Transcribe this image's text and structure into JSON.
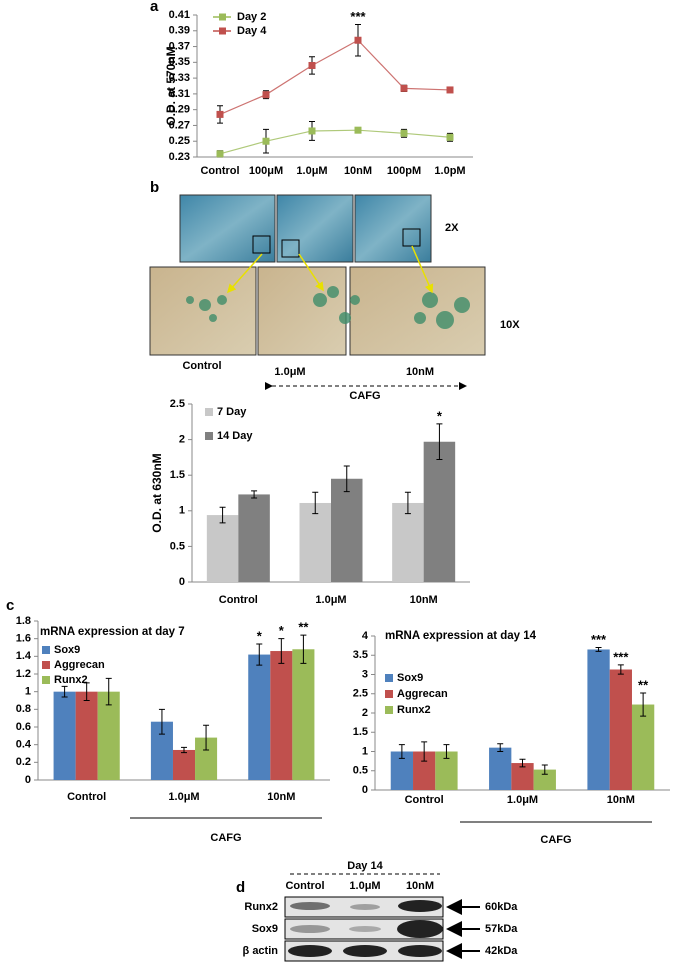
{
  "chart_data": [
    {
      "type": "line",
      "label": "a",
      "ylabel": "O.D. at 570nM",
      "categories": [
        "Control",
        "100μM",
        "1.0μM",
        "10nM",
        "100pM",
        "1.0pM"
      ],
      "series": [
        {
          "name": "Day 2",
          "color": "#9bbb59",
          "values": [
            0.234,
            0.25,
            0.263,
            0.264,
            0.26,
            0.255
          ],
          "errors": [
            0.004,
            0.015,
            0.012,
            0.003,
            0.005,
            0.005
          ]
        },
        {
          "name": "Day 4",
          "color": "#c0504d",
          "values": [
            0.284,
            0.309,
            0.346,
            0.378,
            0.317,
            0.315
          ],
          "errors": [
            0.011,
            0.005,
            0.011,
            0.02,
            0.004,
            0.003
          ],
          "annotations": [
            null,
            null,
            null,
            "***",
            null,
            null
          ]
        }
      ],
      "ylim": [
        0.23,
        0.41
      ],
      "yticks": [
        0.23,
        0.25,
        0.27,
        0.29,
        0.31,
        0.33,
        0.35,
        0.37,
        0.39,
        0.41
      ],
      "grid": false,
      "legend": "upper left"
    },
    {
      "type": "bar",
      "ylabel": "O.D. at 630nM",
      "categories": [
        "Control",
        "1.0μM",
        "10nM"
      ],
      "series": [
        {
          "name": "7 Day",
          "color": "#c8c8c8",
          "values": [
            0.94,
            1.11,
            1.11
          ],
          "errors": [
            0.11,
            0.15,
            0.15
          ]
        },
        {
          "name": "14 Day",
          "color": "#808080",
          "values": [
            1.23,
            1.45,
            1.97
          ],
          "errors": [
            0.05,
            0.18,
            0.25
          ],
          "annotations": [
            null,
            null,
            "*"
          ]
        }
      ],
      "ylim": [
        0,
        2.5
      ],
      "yticks": [
        0,
        0.5,
        1,
        1.5,
        2,
        2.5
      ],
      "grid": false,
      "legend": "upper left"
    },
    {
      "type": "bar",
      "label": "c",
      "title": "mRNA expression at day 7",
      "group_label": "CAFG",
      "categories": [
        "Control",
        "1.0μM",
        "10nM"
      ],
      "series": [
        {
          "name": "Sox9",
          "color": "#4f81bd",
          "values": [
            1.0,
            0.66,
            1.42
          ],
          "errors": [
            0.06,
            0.14,
            0.12
          ],
          "annotations": [
            null,
            null,
            "*"
          ]
        },
        {
          "name": "Aggrecan",
          "color": "#c0504d",
          "values": [
            1.0,
            0.34,
            1.46
          ],
          "errors": [
            0.1,
            0.03,
            0.14
          ],
          "annotations": [
            null,
            null,
            "*"
          ]
        },
        {
          "name": "Runx2",
          "color": "#9bbb59",
          "values": [
            1.0,
            0.48,
            1.48
          ],
          "errors": [
            0.15,
            0.14,
            0.16
          ],
          "annotations": [
            null,
            null,
            "**"
          ]
        }
      ],
      "ylim": [
        0,
        1.8
      ],
      "yticks": [
        0,
        0.2,
        0.4,
        0.6,
        0.8,
        1,
        1.2,
        1.4,
        1.6,
        1.8
      ],
      "grid": false,
      "legend": "upper left"
    },
    {
      "type": "bar",
      "title": "mRNA expression at day 14",
      "group_label": "CAFG",
      "categories": [
        "Control",
        "1.0μM",
        "10nM"
      ],
      "series": [
        {
          "name": "Sox9",
          "color": "#4f81bd",
          "values": [
            1.0,
            1.1,
            3.65
          ],
          "errors": [
            0.18,
            0.1,
            0.05
          ],
          "annotations": [
            null,
            null,
            "***"
          ]
        },
        {
          "name": "Aggrecan",
          "color": "#c0504d",
          "values": [
            1.0,
            0.7,
            3.13
          ],
          "errors": [
            0.25,
            0.1,
            0.12
          ],
          "annotations": [
            null,
            null,
            "***"
          ]
        },
        {
          "name": "Runx2",
          "color": "#9bbb59",
          "values": [
            1.0,
            0.53,
            2.22
          ],
          "errors": [
            0.18,
            0.12,
            0.3
          ],
          "annotations": [
            null,
            null,
            "**"
          ]
        }
      ],
      "ylim": [
        0,
        4
      ],
      "yticks": [
        0,
        0.5,
        1,
        1.5,
        2,
        2.5,
        3,
        3.5,
        4
      ],
      "grid": false,
      "legend": "upper left"
    }
  ],
  "staining": {
    "label": "b",
    "magnifications": [
      "2X",
      "10X"
    ],
    "conditions": [
      "Control",
      "1.0μM",
      "10nM"
    ],
    "treatment": "CAFG"
  },
  "blot": {
    "label": "d",
    "time": "Day 14",
    "lanes": [
      "Control",
      "1.0μM",
      "10nM"
    ],
    "rows": [
      {
        "protein": "Runx2",
        "size": "60kDa"
      },
      {
        "protein": "Sox9",
        "size": "57kDa"
      },
      {
        "protein": "β actin",
        "size": "42kDa"
      }
    ]
  }
}
